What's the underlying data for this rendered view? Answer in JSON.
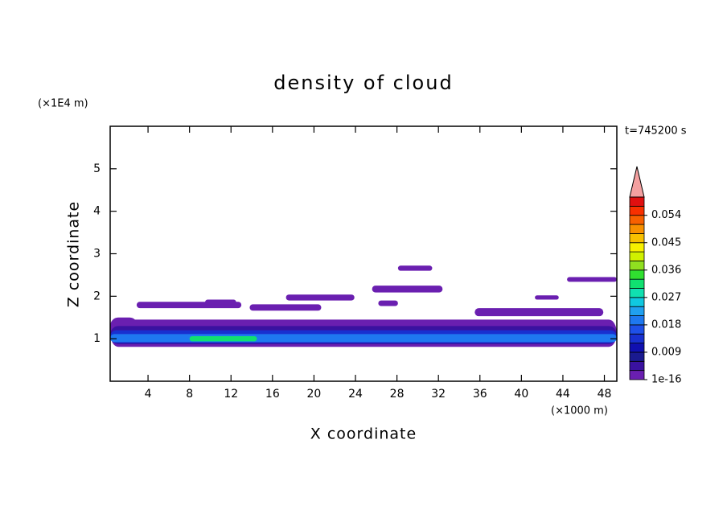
{
  "chart_data": {
    "type": "contour",
    "title": "density of cloud",
    "time_label": "t=745200 s",
    "x_label": "X coordinate",
    "x_unit": "(×1000 m)",
    "y_label": "Z coordinate",
    "y_unit": "(×1E4 m)",
    "xlim": [
      0.35,
      49.2
    ],
    "xticks": [
      4,
      8,
      12,
      16,
      20,
      24,
      28,
      32,
      36,
      40,
      44,
      48
    ],
    "ylim": [
      0,
      6
    ],
    "yticks": [
      1,
      2,
      3,
      4,
      5
    ],
    "colorbar": {
      "levels": [
        1e-16,
        0.003,
        0.006,
        0.009,
        0.012,
        0.015,
        0.018,
        0.021,
        0.024,
        0.027,
        0.03,
        0.033,
        0.036,
        0.039,
        0.042,
        0.045,
        0.048,
        0.051,
        0.054,
        0.057,
        0.06
      ],
      "colors": [
        "#6a1fb0",
        "#3a12a0",
        "#1a1a90",
        "#1010b0",
        "#1830d0",
        "#1e50e8",
        "#1e78f0",
        "#20a0f0",
        "#10c8e0",
        "#10e0b0",
        "#10e070",
        "#30e030",
        "#90e020",
        "#d0f000",
        "#f8f000",
        "#f8c000",
        "#f89000",
        "#f86000",
        "#f83000",
        "#e01010"
      ],
      "extend_color": "#f4a0a0",
      "ticks": [
        1e-16,
        0.009,
        0.018,
        0.027,
        0.036,
        0.045,
        0.054
      ]
    },
    "regions": [
      {
        "x": [
          0.35,
          49.2
        ],
        "z": [
          0.81,
          1.45
        ],
        "value": 0.0015
      },
      {
        "x": [
          0.35,
          3.0
        ],
        "z": [
          1.1,
          1.5
        ],
        "value": 0.0015
      },
      {
        "x": [
          2.9,
          13.0
        ],
        "z": [
          1.72,
          1.87
        ],
        "value": 0.0015
      },
      {
        "x": [
          9.5,
          12.5
        ],
        "z": [
          1.8,
          1.92
        ],
        "value": 0.0015
      },
      {
        "x": [
          13.8,
          20.7
        ],
        "z": [
          1.66,
          1.81
        ],
        "value": 0.0015
      },
      {
        "x": [
          17.3,
          23.9
        ],
        "z": [
          1.9,
          2.04
        ],
        "value": 0.0015
      },
      {
        "x": [
          25.6,
          32.4
        ],
        "z": [
          2.09,
          2.25
        ],
        "value": 0.0015
      },
      {
        "x": [
          28.1,
          31.4
        ],
        "z": [
          2.6,
          2.72
        ],
        "value": 0.0015
      },
      {
        "x": [
          26.2,
          28.1
        ],
        "z": [
          1.77,
          1.9
        ],
        "value": 0.0015
      },
      {
        "x": [
          35.5,
          47.9
        ],
        "z": [
          1.53,
          1.72
        ],
        "value": 0.0015
      },
      {
        "x": [
          41.3,
          43.6
        ],
        "z": [
          1.92,
          2.02
        ],
        "value": 0.0015
      },
      {
        "x": [
          44.4,
          49.2
        ],
        "z": [
          2.34,
          2.45
        ],
        "value": 0.0015
      },
      {
        "x": [
          0.35,
          49.2
        ],
        "z": [
          0.87,
          1.3
        ],
        "value": 0.005
      },
      {
        "x": [
          0.35,
          49.2
        ],
        "z": [
          0.9,
          1.2
        ],
        "value": 0.012
      },
      {
        "x": [
          0.35,
          49.2
        ],
        "z": [
          0.92,
          1.11
        ],
        "value": 0.02
      },
      {
        "x": [
          8.0,
          14.5
        ],
        "z": [
          0.94,
          1.06
        ],
        "value": 0.03
      }
    ]
  }
}
